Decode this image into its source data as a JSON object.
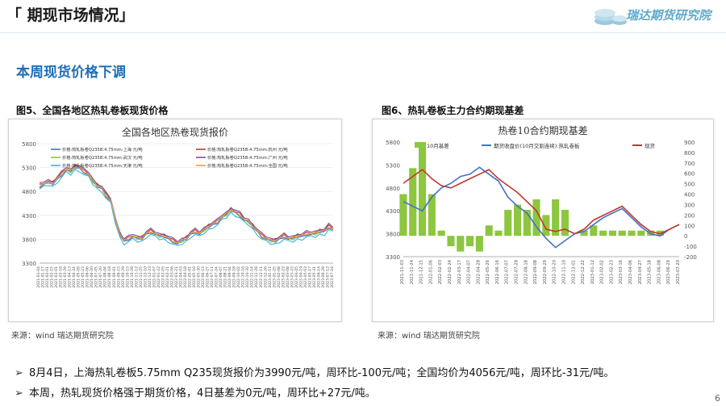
{
  "header": {
    "title": "「 期现市场情况」",
    "logo_text": "瑞达期货研究院"
  },
  "subtitle": "本周现货价格下调",
  "figures": [
    {
      "caption": "图5、全国各地区热轧卷板现货价格",
      "source": "来源：wind   瑞达期货研究院"
    },
    {
      "caption": "图6、热轧卷板主力合约期现基差",
      "source": "来源：wind   瑞达期货研究院"
    }
  ],
  "bullets": [
    "8月4日，上海热轧卷板5.75mm Q235现货报价为3990元/吨，周环比-100元/吨；全国均价为4056元/吨，周环比-31元/吨。",
    "本周，热轧现货价格强于期货价格，4日基差为0元/吨，周环比+27元/吨。"
  ],
  "page_number": "6",
  "chart_data": [
    {
      "type": "line",
      "title": "全国各地区热卷现货报价",
      "y_ticks": [
        "5800",
        "5300",
        "4800",
        "4300",
        "3800",
        "3300"
      ],
      "ylim": [
        3300,
        5800
      ],
      "x_labels": [
        "2021-01-04",
        "2021-01-17",
        "2021-02-01",
        "2021-02-15",
        "2021-03-01",
        "2021-03-16",
        "2021-03-29",
        "2021-04-13",
        "2021-04-24",
        "2021-05-09",
        "2021-05-23",
        "2021-06-06",
        "2021-06-20",
        "2021-07-05",
        "2021-07-20",
        "2021-08-04",
        "2021-08-18",
        "2021-09-01",
        "2021-09-15",
        "2021-09-29",
        "2021-10-15",
        "2021-10-28",
        "2021-11-12",
        "2021-11-25",
        "2021-12-10",
        "2021-12-23",
        "2022-01-07",
        "2022-01-22",
        "2022-02-05",
        "2022-02-21",
        "2022-03-06",
        "2022-03-21",
        "2022-04-03",
        "2022-04-18",
        "2022-05-01",
        "2022-05-16",
        "2022-05-30",
        "2022-06-13",
        "2022-06-27",
        "2022-07-11",
        "2022-07-24",
        "2022-08-07",
        "2022-08-21",
        "2022-09-04",
        "2022-09-18",
        "2022-10-02",
        "2022-10-16",
        "2022-10-30",
        "2022-11-14",
        "2022-11-28",
        "2022-12-11",
        "2022-12-26",
        "2023-01-11",
        "2023-01-25",
        "2023-02-08",
        "2023-02-22",
        "2023-03-08",
        "2023-03-22",
        "2023-04-05",
        "2023-04-19",
        "2023-05-03",
        "2023-05-17",
        "2023-05-31",
        "2023-06-14",
        "2023-06-28",
        "2023-07-12",
        "2023-07-24"
      ],
      "legend": [
        {
          "name": "价格:热轧板卷Q235B:4.75mm:上海 元/吨",
          "color": "#4472c4"
        },
        {
          "name": "价格:热轧板卷Q235B:4.75mm:杭州 元/吨",
          "color": "#c0392b"
        },
        {
          "name": "价格:热轧板卷Q235B:4.75mm:武汉 元/吨",
          "color": "#8fbf4a"
        },
        {
          "name": "价格:热轧板卷Q235B:4.75mm:广州 元/吨",
          "color": "#7b4fa0"
        },
        {
          "name": "价格:热轧板卷Q235B:4.75mm:天津 元/吨",
          "color": "#35b5d6"
        },
        {
          "name": "价格:热轧板卷Q235B:4.75mm:全国 元/吨",
          "color": "#f39a3c"
        }
      ],
      "base_series": [
        4900,
        4950,
        4980,
        4950,
        5050,
        5150,
        5250,
        5200,
        5300,
        5280,
        5200,
        5150,
        5000,
        4900,
        4850,
        4700,
        4600,
        4200,
        3900,
        3750,
        3800,
        3850,
        3800,
        3800,
        3900,
        3950,
        3900,
        3850,
        3850,
        3800,
        3750,
        3700,
        3750,
        3800,
        3900,
        3950,
        3900,
        3980,
        4050,
        4100,
        4150,
        4250,
        4300,
        4400,
        4350,
        4300,
        4200,
        4150,
        4050,
        3950,
        3850,
        3800,
        3750,
        3750,
        3800,
        3850,
        3800,
        3800,
        3850,
        3850,
        3900,
        3900,
        3900,
        3950,
        3950,
        4050,
        4000
      ],
      "series_offsets": [
        0,
        40,
        10,
        60,
        -50,
        20
      ]
    },
    {
      "type": "bar+line",
      "title": "热卷10合约期现基差",
      "y_left_ticks": [
        "5800",
        "5300",
        "4800",
        "4300",
        "3800",
        "3300"
      ],
      "ylim_left": [
        3300,
        5800
      ],
      "y_right_ticks": [
        "900",
        "800",
        "700",
        "600",
        "500",
        "400",
        "300",
        "200",
        "100",
        "0",
        "-100",
        "-200"
      ],
      "ylim_right": [
        -200,
        900
      ],
      "x_labels": [
        "2021-11-03",
        "2021-11-24",
        "2021-12-15",
        "2022-01-06",
        "2022-02-03",
        "2022-02-24",
        "2022-03-17",
        "2022-04-07",
        "2022-04-28",
        "2022-05-26",
        "2022-06-16",
        "2022-07-07",
        "2022-07-28",
        "2022-08-18",
        "2022-09-08",
        "2022-09-29",
        "2022-10-20",
        "2022-11-10",
        "2022-12-01",
        "2022-12-22",
        "2023-01-12",
        "2023-02-02",
        "2023-02-23",
        "2023-03-16",
        "2023-04-06",
        "2023-04-27",
        "2023-05-18",
        "2023-06-08",
        "2023-06-29",
        "2023-07-20"
      ],
      "x_labels_display": [
        "2021-11-03",
        "2021-11-24",
        "2021-12-15",
        "2022-01-06",
        "2022-02-03",
        "2022-02-24",
        "2022-03-17",
        "2022-04-07",
        "2022-04-28",
        "2022-05-26",
        "2022-06-16",
        "2022-07-07",
        "2022-07-28",
        "2022-08-18",
        "2022-09-08",
        "2022-09-29",
        "2022-10-20",
        "2022-11-10",
        "2022-12-01",
        "2022-12-22",
        "2023-01-12",
        "2023-02-02",
        "2023-02-23",
        "2023-03-16",
        "2023-04-06",
        "2023-04-27",
        "2023-05-18",
        "2023-06-08",
        "2023-06-29",
        "2023-07-20"
      ],
      "legend": [
        {
          "name": "10月基差",
          "color": "#8dc63f",
          "kind": "bar"
        },
        {
          "name": "期货收盘价(10月交割连续):热轧卷板",
          "color": "#4472c4",
          "kind": "line"
        },
        {
          "name": "现货",
          "color": "#c0392b",
          "kind": "line"
        }
      ],
      "spot": [
        4900,
        5050,
        5200,
        5000,
        4850,
        4800,
        4900,
        5000,
        5100,
        5200,
        5000,
        4850,
        4700,
        4500,
        4300,
        3900,
        3850,
        3900,
        3800,
        3900,
        4100,
        4200,
        4300,
        4400,
        4200,
        4000,
        3850,
        3800,
        3900,
        4000
      ],
      "futures": [
        4500,
        4400,
        4300,
        4600,
        4800,
        4900,
        5050,
        5100,
        5250,
        5100,
        4950,
        4600,
        4400,
        4250,
        3950,
        3700,
        3500,
        3650,
        3800,
        3850,
        4000,
        4150,
        4250,
        4350,
        4150,
        3950,
        3800,
        3750,
        3900,
        4000
      ],
      "basis": [
        400,
        650,
        900,
        400,
        50,
        -100,
        -150,
        -100,
        -150,
        100,
        50,
        250,
        300,
        250,
        350,
        200,
        350,
        250,
        0,
        50,
        100,
        50,
        50,
        50,
        50,
        50,
        50,
        50,
        0,
        0
      ]
    }
  ]
}
